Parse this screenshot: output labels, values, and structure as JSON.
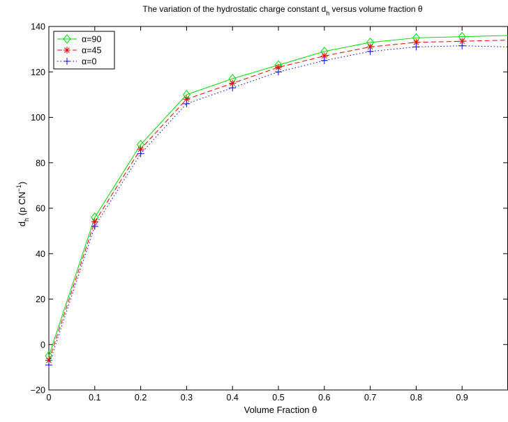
{
  "chart_data": {
    "type": "line",
    "title": "The variation of the hydrostatic charge constant d_h versus volume fraction θ",
    "title_parts": {
      "main": "The variation of the hydrostatic charge constant d",
      "sub": "h",
      "tail": " versus volume fraction θ"
    },
    "xlabel": "Volume Fraction θ",
    "ylabel": "d_h (p CN⁻¹)",
    "ylabel_parts": {
      "main": "d",
      "sub": "h",
      "tail": " (p CN",
      "sup": "−1",
      "close": ")"
    },
    "xlim": [
      0,
      1
    ],
    "ylim": [
      -20,
      140
    ],
    "xticks": [
      0,
      0.1,
      0.2,
      0.3,
      0.4,
      0.5,
      0.6,
      0.7,
      0.8,
      0.9
    ],
    "xtick_labels": [
      "0",
      "0.1",
      "0.2",
      "0.3",
      "0.4",
      "0.5",
      "0.6",
      "0.7",
      "0.8",
      "0.9"
    ],
    "yticks": [
      -20,
      0,
      20,
      40,
      60,
      80,
      100,
      120,
      140
    ],
    "ytick_labels": [
      "−20",
      "0",
      "20",
      "40",
      "60",
      "80",
      "100",
      "120",
      "140"
    ],
    "grid": false,
    "legend_position": "top-left",
    "x": [
      0,
      0.1,
      0.2,
      0.3,
      0.4,
      0.5,
      0.6,
      0.7,
      0.8,
      0.9,
      1.0
    ],
    "series": [
      {
        "name": "α=90",
        "color": "#00dd00",
        "line_style": "solid",
        "marker": "diamond",
        "values": [
          -5,
          56,
          88,
          110,
          117,
          123,
          129,
          133,
          135,
          135.5,
          136
        ]
      },
      {
        "name": "α=45",
        "color": "#ee0000",
        "line_style": "dashed",
        "marker": "asterisk",
        "values": [
          -7,
          54,
          86,
          108,
          115,
          122,
          127,
          131,
          133,
          133.5,
          134
        ]
      },
      {
        "name": "α=0",
        "color": "#0000ff",
        "line_style": "dotted",
        "marker": "plus",
        "values": [
          -9,
          52,
          84,
          106,
          113,
          120,
          125,
          129,
          131,
          131.5,
          131
        ]
      }
    ]
  }
}
